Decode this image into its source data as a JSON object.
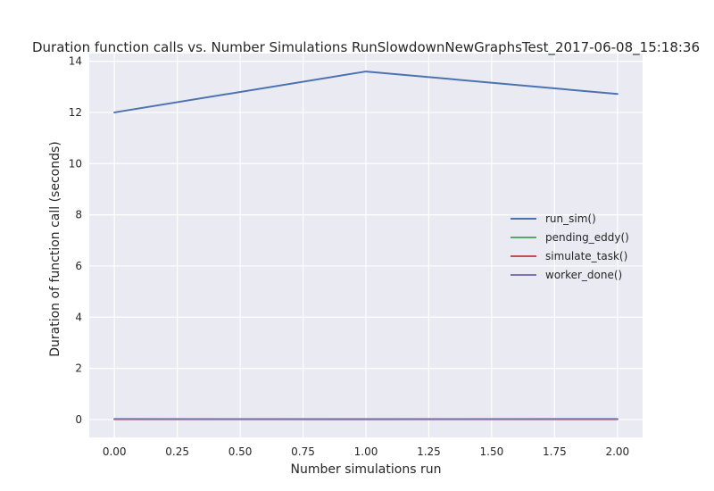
{
  "chart_data": {
    "type": "line",
    "title": "Duration function calls vs. Number Simulations RunSlowdownNewGraphsTest_2017-06-08_15:18:36",
    "xlabel": "Number simulations run",
    "ylabel": "Duration of function call (seconds)",
    "x": [
      0,
      1,
      2
    ],
    "xlim": [
      -0.1,
      2.1
    ],
    "ylim": [
      -0.7,
      14.3
    ],
    "xticks": [
      0.0,
      0.25,
      0.5,
      0.75,
      1.0,
      1.25,
      1.5,
      1.75,
      2.0
    ],
    "xtick_labels": [
      "0.00",
      "0.25",
      "0.50",
      "0.75",
      "1.00",
      "1.25",
      "1.50",
      "1.75",
      "2.00"
    ],
    "yticks": [
      0,
      2,
      4,
      6,
      8,
      10,
      12,
      14
    ],
    "ytick_labels": [
      "0",
      "2",
      "4",
      "6",
      "8",
      "10",
      "12",
      "14"
    ],
    "grid": true,
    "legend_position": "center-right",
    "series": [
      {
        "name": "run_sim()",
        "color": "#4c72b0",
        "values": [
          12.0,
          13.6,
          12.72
        ]
      },
      {
        "name": "pending_eddy()",
        "color": "#55a868",
        "values": [
          0.02,
          0.02,
          0.02
        ]
      },
      {
        "name": "simulate_task()",
        "color": "#c44e52",
        "values": [
          0.01,
          0.01,
          0.01
        ]
      },
      {
        "name": "worker_done()",
        "color": "#8172b2",
        "values": [
          0.02,
          0.01,
          0.02
        ]
      }
    ]
  }
}
